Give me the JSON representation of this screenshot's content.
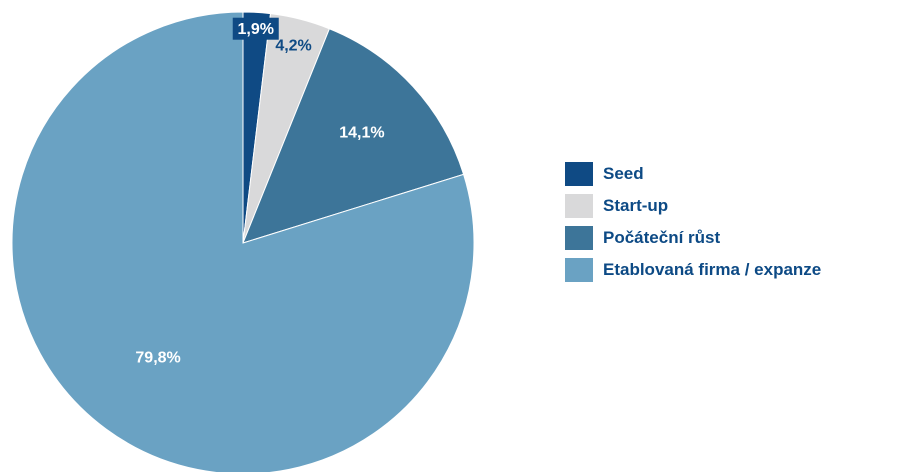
{
  "chart_data": {
    "type": "pie",
    "title": "",
    "slices": [
      {
        "name": "Seed",
        "value": 1.9,
        "label": "1,9%",
        "color": "#0f4a84",
        "label_color": "#ffffff",
        "label_boxed": true
      },
      {
        "name": "Start-up",
        "value": 4.2,
        "label": "4,2%",
        "color": "#d9d9da",
        "label_color": "#0f4a84",
        "label_boxed": false
      },
      {
        "name": "Počáteční růst",
        "value": 14.1,
        "label": "14,1%",
        "color": "#3d7599",
        "label_color": "#ffffff",
        "label_boxed": false
      },
      {
        "name": "Etablovaná firma / expanze",
        "value": 79.8,
        "label": "79,8%",
        "color": "#6aa2c3",
        "label_color": "#ffffff",
        "label_boxed": false
      }
    ],
    "legend_position": "right"
  }
}
